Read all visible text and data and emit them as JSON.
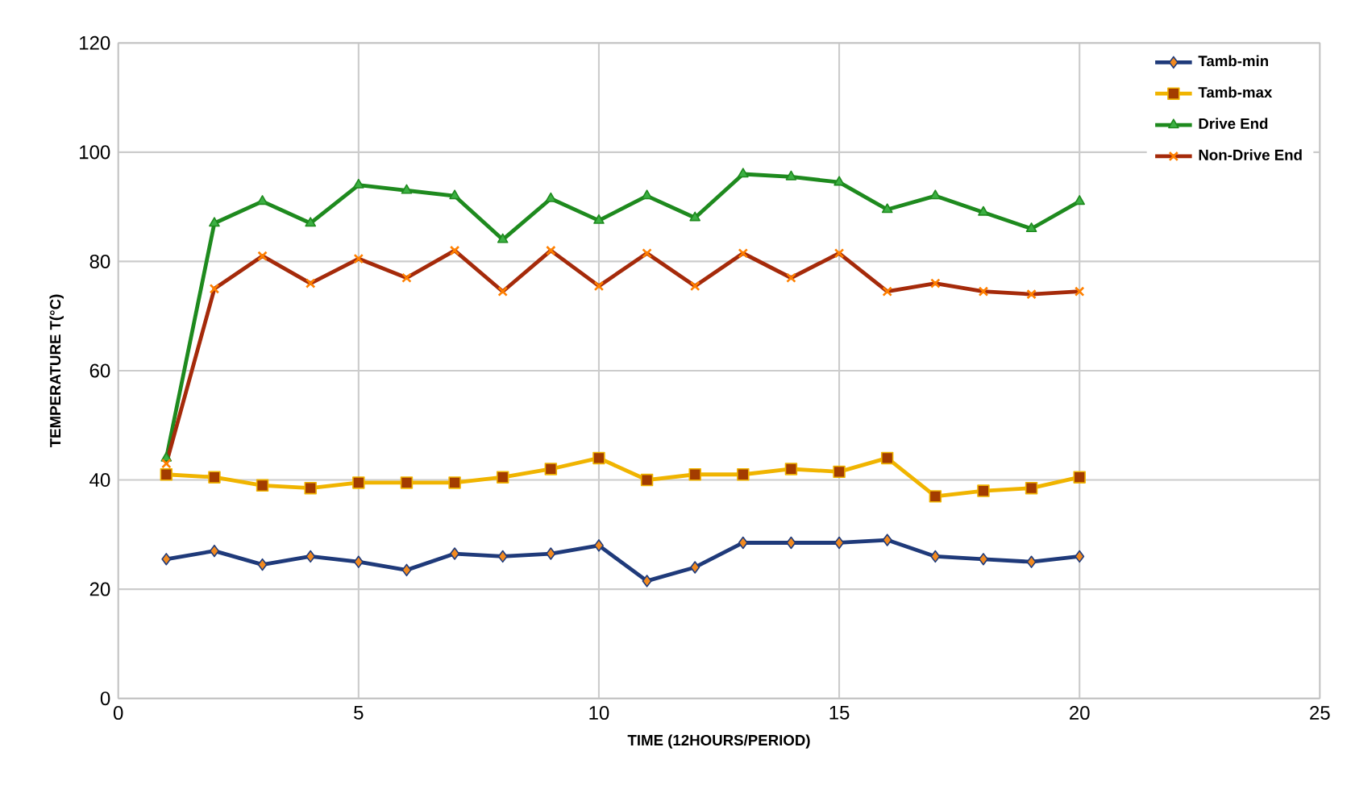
{
  "chart_data": {
    "type": "line",
    "xlabel": "TIME (12HOURS/PERIOD)",
    "ylabel": "TEMPERATURE T(°C)",
    "x": [
      1,
      2,
      3,
      4,
      5,
      6,
      7,
      8,
      9,
      10,
      11,
      12,
      13,
      14,
      15,
      16,
      17,
      18,
      19,
      20
    ],
    "xlim": [
      0,
      25
    ],
    "xticks": [
      0,
      5,
      10,
      15,
      20,
      25
    ],
    "ylim": [
      0,
      120
    ],
    "yticks": [
      0,
      20,
      40,
      60,
      80,
      100,
      120
    ],
    "grid": true,
    "legend": "top right",
    "series": [
      {
        "name": "Tamb-min",
        "color": "#1f3a7a",
        "marker": "diamond",
        "values": [
          25.5,
          27,
          24.5,
          26,
          25,
          23.5,
          26.5,
          26,
          26.5,
          28,
          21.5,
          24,
          28.5,
          28.5,
          28.5,
          29,
          26,
          25.5,
          25,
          26
        ]
      },
      {
        "name": "Tamb-max",
        "color": "#f0b400",
        "marker": "square",
        "values": [
          41,
          40.5,
          39,
          38.5,
          39.5,
          39.5,
          39.5,
          40.5,
          42,
          44,
          40,
          41,
          41,
          42,
          41.5,
          44,
          37,
          38,
          38.5,
          40.5
        ]
      },
      {
        "name": "Drive End",
        "color": "#1e8a1e",
        "marker": "triangle",
        "values": [
          44,
          87,
          91,
          87,
          94,
          93,
          92,
          84,
          91.5,
          87.5,
          92,
          88,
          96,
          95.5,
          94.5,
          89.5,
          92,
          89,
          86,
          91
        ]
      },
      {
        "name": "Non-Drive End",
        "color": "#a52a0a",
        "marker": "cross",
        "values": [
          43,
          75,
          81,
          76,
          80.5,
          77,
          82,
          74.5,
          82,
          75.5,
          81.5,
          75.5,
          81.5,
          77,
          81.5,
          74.5,
          76,
          74.5,
          74,
          74.5
        ]
      }
    ]
  }
}
